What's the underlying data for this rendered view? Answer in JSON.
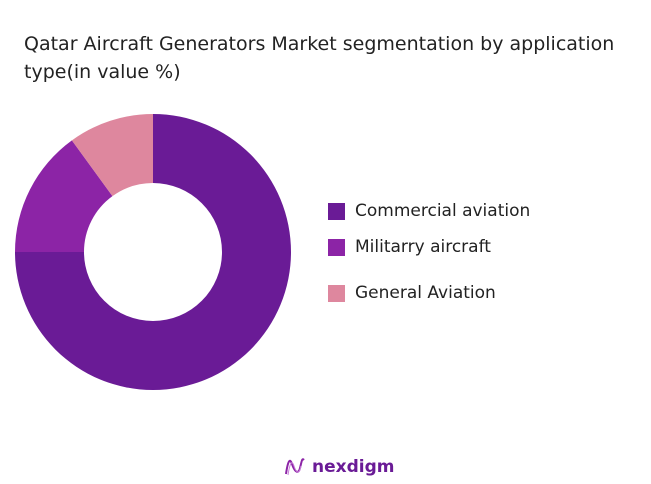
{
  "chart_data": {
    "type": "pie",
    "variant": "donut",
    "title": "Qatar Aircraft Generators Market segmentation by application type(in value %)",
    "categories": [
      "Commercial aviation",
      "Militarry aircraft",
      "General Aviation"
    ],
    "values": [
      75,
      15,
      10
    ],
    "colors": [
      "#6a1b96",
      "#8c24a6",
      "#de879e"
    ],
    "legend_position": "right"
  },
  "brand": {
    "name": "nexdigm",
    "color": "#6a1b96"
  }
}
